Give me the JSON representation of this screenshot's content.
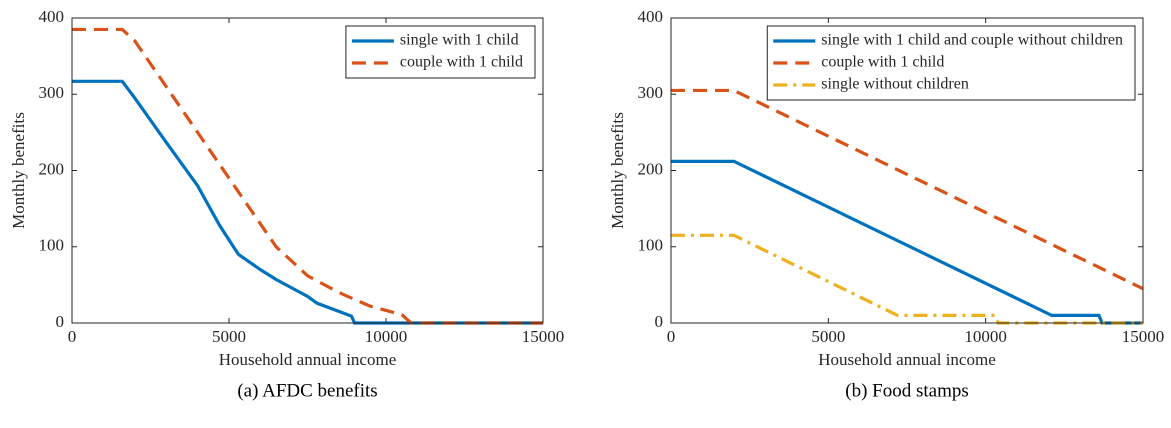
{
  "chart_data": [
    {
      "type": "line",
      "caption": "(a) AFDC benefits",
      "xlabel": "Household annual income",
      "ylabel": "Monthly benefits",
      "xlim": [
        0,
        15000
      ],
      "ylim": [
        0,
        400
      ],
      "xticks": [
        0,
        5000,
        10000,
        15000
      ],
      "yticks": [
        0,
        100,
        200,
        300,
        400
      ],
      "legend": "upper right",
      "series": [
        {
          "name": "single with 1 child",
          "color": "#0072bd",
          "dash": "solid",
          "x": [
            0,
            1600,
            2000,
            3000,
            4000,
            4700,
            5300,
            6000,
            6500,
            7500,
            7800,
            8900,
            9000,
            15000
          ],
          "values": [
            317,
            317,
            295,
            237,
            180,
            128,
            90,
            70,
            57,
            35,
            26,
            9,
            0,
            0
          ]
        },
        {
          "name": "couple with 1 child",
          "color": "#d95319",
          "dash": "dashed",
          "x": [
            0,
            1600,
            2000,
            3000,
            4000,
            5000,
            6000,
            6500,
            7500,
            8500,
            9500,
            10500,
            10800,
            15000
          ],
          "values": [
            385,
            385,
            370,
            310,
            250,
            190,
            130,
            100,
            62,
            40,
            22,
            11,
            0,
            0
          ]
        }
      ]
    },
    {
      "type": "line",
      "caption": "(b) Food stamps",
      "xlabel": "Household annual income",
      "ylabel": "Monthly benefits",
      "xlim": [
        0,
        15000
      ],
      "ylim": [
        0,
        400
      ],
      "xticks": [
        0,
        5000,
        10000,
        15000
      ],
      "yticks": [
        0,
        100,
        200,
        300,
        400
      ],
      "legend": "upper right",
      "series": [
        {
          "name": "single with 1 child and couple without children",
          "color": "#0072bd",
          "dash": "solid",
          "x": [
            0,
            2000,
            12100,
            13600,
            13700,
            15000
          ],
          "values": [
            212,
            212,
            10,
            10,
            0,
            0
          ]
        },
        {
          "name": "couple with 1 child",
          "color": "#d95319",
          "dash": "dashed",
          "x": [
            0,
            2000,
            15000
          ],
          "values": [
            305,
            305,
            45
          ]
        },
        {
          "name": "single without children",
          "color": "#edb120",
          "dash": "dashdot",
          "x": [
            0,
            2000,
            7200,
            10300,
            10400,
            15000
          ],
          "values": [
            115,
            115,
            10,
            10,
            0,
            0
          ]
        }
      ]
    }
  ]
}
